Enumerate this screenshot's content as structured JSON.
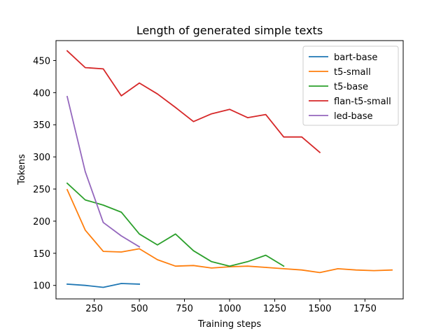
{
  "chart_data": {
    "type": "line",
    "title": "Length of generated simple texts",
    "xlabel": "Training steps",
    "ylabel": "Tokens",
    "xlim": [
      38,
      1962
    ],
    "ylim": [
      79,
      481
    ],
    "xticks": [
      250,
      500,
      750,
      1000,
      1250,
      1500,
      1750
    ],
    "yticks": [
      100,
      150,
      200,
      250,
      300,
      350,
      400,
      450
    ],
    "grid": false,
    "legend_position": "top-right",
    "series": [
      {
        "name": "bart-base",
        "color": "#1f77b4",
        "x": [
          100,
          200,
          300,
          400,
          500
        ],
        "y": [
          102,
          100,
          97,
          103,
          102
        ]
      },
      {
        "name": "t5-small",
        "color": "#ff7f0e",
        "x": [
          100,
          200,
          300,
          400,
          500,
          600,
          700,
          800,
          900,
          1000,
          1100,
          1200,
          1300,
          1400,
          1500,
          1600,
          1700,
          1800,
          1900
        ],
        "y": [
          249,
          186,
          153,
          152,
          157,
          140,
          130,
          131,
          127,
          129,
          130,
          128,
          126,
          124,
          120,
          126,
          124,
          123,
          124
        ]
      },
      {
        "name": "t5-base",
        "color": "#2ca02c",
        "x": [
          100,
          200,
          300,
          400,
          500,
          600,
          700,
          800,
          900,
          1000,
          1100,
          1200,
          1300
        ],
        "y": [
          259,
          233,
          225,
          214,
          180,
          163,
          180,
          154,
          137,
          130,
          137,
          147,
          130
        ]
      },
      {
        "name": "flan-t5-small",
        "color": "#d62728",
        "x": [
          100,
          200,
          300,
          400,
          500,
          600,
          700,
          800,
          900,
          1000,
          1100,
          1200,
          1300,
          1400,
          1500
        ],
        "y": [
          465,
          439,
          437,
          395,
          415,
          398,
          377,
          355,
          367,
          374,
          361,
          366,
          331,
          331,
          307
        ]
      },
      {
        "name": "led-base",
        "color": "#9467bd",
        "x": [
          100,
          200,
          300,
          400,
          500
        ],
        "y": [
          394,
          277,
          198,
          177,
          160
        ]
      }
    ]
  }
}
